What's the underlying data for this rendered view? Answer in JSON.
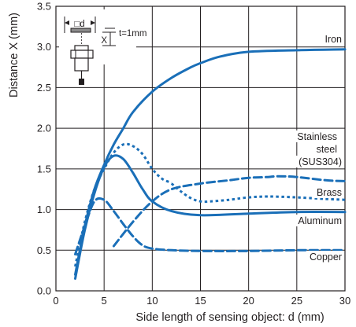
{
  "chart_data": {
    "type": "line",
    "title": "",
    "xlabel": "Side length of sensing object: d (mm)",
    "ylabel": "Distance X (mm)",
    "xlim": [
      0,
      30
    ],
    "ylim": [
      0,
      3.5
    ],
    "x_ticks": [
      "0",
      "5",
      "10",
      "15",
      "20",
      "25",
      "30"
    ],
    "y_ticks": [
      "0.0",
      "0.5",
      "1.0",
      "1.5",
      "2.0",
      "2.5",
      "3.0",
      "3.5"
    ],
    "grid": true,
    "color": "#1a6fb8",
    "series": [
      {
        "name": "Iron",
        "style": "solid",
        "label_lines": [
          "Iron"
        ],
        "x": [
          2,
          3,
          4,
          5,
          6,
          7,
          8,
          10,
          12,
          14,
          15,
          17,
          20,
          25,
          30
        ],
        "y": [
          0.2,
          0.8,
          1.25,
          1.55,
          1.8,
          2.0,
          2.2,
          2.45,
          2.62,
          2.75,
          2.8,
          2.88,
          2.94,
          2.96,
          2.97
        ]
      },
      {
        "name": "Stainless steel (SUS304)",
        "style": "dotted",
        "label_lines": [
          "Stainless",
          "steel",
          "(SUS304)"
        ],
        "x": [
          2,
          3,
          4,
          5,
          6,
          7,
          8,
          9,
          10,
          11,
          12
        ],
        "y": [
          0.3,
          0.85,
          1.25,
          1.5,
          1.7,
          1.8,
          1.78,
          1.68,
          1.5,
          1.38,
          1.33
        ]
      },
      {
        "name": "Brass",
        "style": "dashed",
        "label_lines": [
          "Brass"
        ],
        "x": [
          6,
          8,
          10,
          12,
          15,
          18,
          20,
          22,
          23,
          25,
          28,
          30
        ],
        "y": [
          0.55,
          0.85,
          1.1,
          1.25,
          1.32,
          1.36,
          1.39,
          1.4,
          1.41,
          1.4,
          1.36,
          1.35
        ]
      },
      {
        "name": "Aluminum",
        "style": "solid",
        "label_lines": [
          "Aluminum"
        ],
        "x": [
          2,
          3,
          4,
          5,
          6,
          7,
          8,
          9,
          10,
          12,
          15,
          20,
          25,
          30
        ],
        "y": [
          0.15,
          0.75,
          1.2,
          1.52,
          1.66,
          1.62,
          1.45,
          1.25,
          1.1,
          0.98,
          0.93,
          0.95,
          0.97,
          0.97
        ]
      },
      {
        "name": "Copper",
        "style": "dashed",
        "label_lines": [
          "Copper"
        ],
        "x": [
          2,
          3,
          4,
          5,
          6,
          7,
          8,
          9,
          10,
          12,
          15,
          20,
          25,
          30
        ],
        "y": [
          0.45,
          0.8,
          1.1,
          1.12,
          0.98,
          0.82,
          0.67,
          0.56,
          0.52,
          0.5,
          0.49,
          0.49,
          0.5,
          0.5
        ]
      },
      {
        "name": "Brass (dotted)",
        "style": "dotted",
        "label_lines": [],
        "x": [
          12,
          13,
          14,
          15,
          16,
          18,
          20,
          22,
          25,
          28,
          30
        ],
        "y": [
          1.32,
          1.22,
          1.14,
          1.1,
          1.1,
          1.12,
          1.15,
          1.16,
          1.15,
          1.13,
          1.12
        ]
      }
    ],
    "inset": {
      "symbol": "□d",
      "thickness": "t=1mm",
      "distance": "X"
    }
  }
}
